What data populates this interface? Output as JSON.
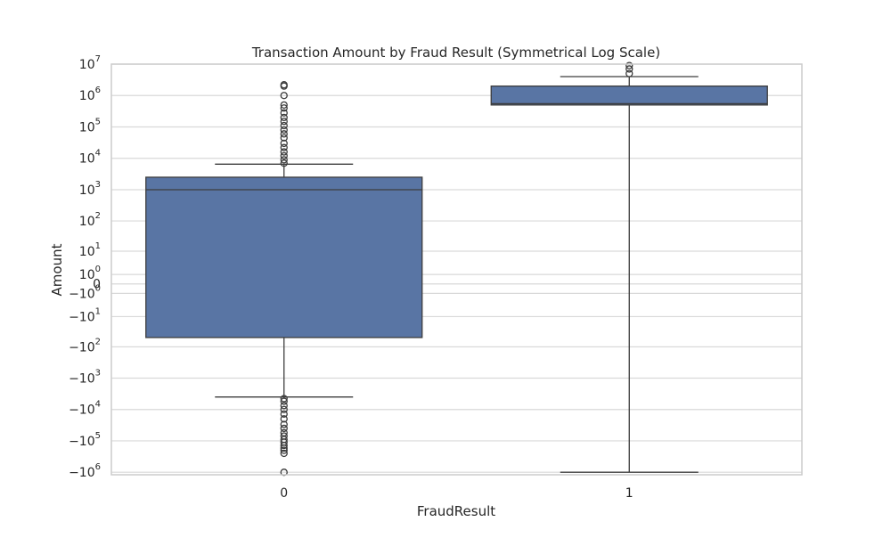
{
  "chart_data": {
    "type": "box",
    "title": "Transaction Amount by Fraud Result (Symmetrical Log Scale)",
    "xlabel": "FraudResult",
    "ylabel": "Amount",
    "yscale": "symlog",
    "ylim": [
      -1200000,
      10000000
    ],
    "grid": true,
    "box_color": "#5975a4",
    "edge_color": "#3d3d3d",
    "y_ticks": [
      {
        "value": 10000000,
        "base": "10",
        "exp": "7",
        "sign": ""
      },
      {
        "value": 1000000,
        "base": "10",
        "exp": "6",
        "sign": ""
      },
      {
        "value": 100000,
        "base": "10",
        "exp": "5",
        "sign": ""
      },
      {
        "value": 10000,
        "base": "10",
        "exp": "4",
        "sign": ""
      },
      {
        "value": 1000,
        "base": "10",
        "exp": "3",
        "sign": ""
      },
      {
        "value": 100,
        "base": "10",
        "exp": "2",
        "sign": ""
      },
      {
        "value": 10,
        "base": "10",
        "exp": "1",
        "sign": ""
      },
      {
        "value": 1,
        "base": "10",
        "exp": "0",
        "sign": ""
      },
      {
        "value": 0,
        "base": "0",
        "exp": "",
        "sign": ""
      },
      {
        "value": -1,
        "base": "10",
        "exp": "0",
        "sign": "−"
      },
      {
        "value": -10,
        "base": "10",
        "exp": "1",
        "sign": "−"
      },
      {
        "value": -100,
        "base": "10",
        "exp": "2",
        "sign": "−"
      },
      {
        "value": -1000,
        "base": "10",
        "exp": "3",
        "sign": "−"
      },
      {
        "value": -10000,
        "base": "10",
        "exp": "4",
        "sign": "−"
      },
      {
        "value": -100000,
        "base": "10",
        "exp": "5",
        "sign": "−"
      },
      {
        "value": -1000000,
        "base": "10",
        "exp": "6",
        "sign": "−"
      }
    ],
    "boxes": [
      {
        "category": "0",
        "q1": -50,
        "median": 1000,
        "q3": 2500,
        "whisker_low": -4000,
        "whisker_high": 6500,
        "fliers": [
          -1000000,
          -250000,
          -200000,
          -170000,
          -140000,
          -110000,
          -90000,
          -70000,
          -55000,
          -40000,
          -30000,
          -20000,
          -14000,
          -10000,
          -7500,
          -5500,
          -4500,
          7000,
          9000,
          12000,
          16000,
          22000,
          30000,
          45000,
          60000,
          80000,
          110000,
          150000,
          200000,
          280000,
          400000,
          500000,
          1000000,
          2000000,
          2200000
        ]
      },
      {
        "category": "1",
        "q1": 500000,
        "median": 550000,
        "q3": 2000000,
        "whisker_low": -1000000,
        "whisker_high": 4000000,
        "fliers": [
          5000000,
          7000000,
          9000000
        ]
      }
    ]
  }
}
